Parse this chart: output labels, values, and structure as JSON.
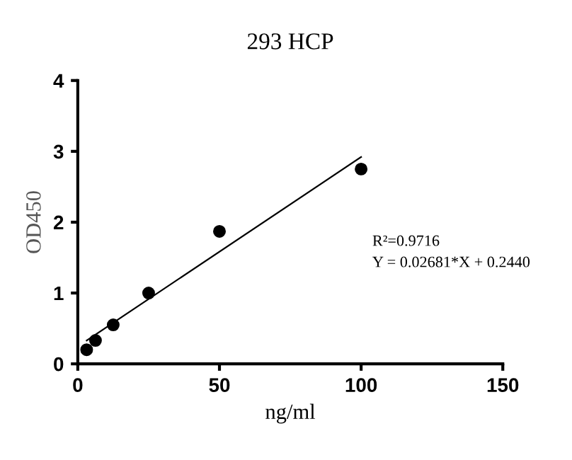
{
  "chart_data": {
    "type": "scatter",
    "title": "293 HCP",
    "xlabel": "ng/ml",
    "ylabel": "OD450",
    "series": [
      {
        "color": "#000000",
        "x": [
          3.125,
          6.25,
          12.5,
          25,
          50,
          100
        ],
        "values": [
          0.2,
          0.33,
          0.55,
          1.0,
          1.87,
          2.75
        ],
        "marker": "circle"
      },
      {
        "type": "line",
        "color": "#000000",
        "x": [
          3.125,
          100
        ],
        "values": [
          0.33,
          2.92
        ],
        "marker": "none",
        "line_style": "solid"
      }
    ],
    "xlim": [
      0,
      150
    ],
    "xticks": [
      0,
      50,
      100,
      150
    ],
    "ylim": [
      0,
      4
    ],
    "yticks": [
      0,
      1,
      2,
      3,
      4
    ],
    "grid": false,
    "legend": false,
    "annotations": [
      "R²=0.9716",
      "Y = 0.02681*X + 0.2440"
    ]
  }
}
